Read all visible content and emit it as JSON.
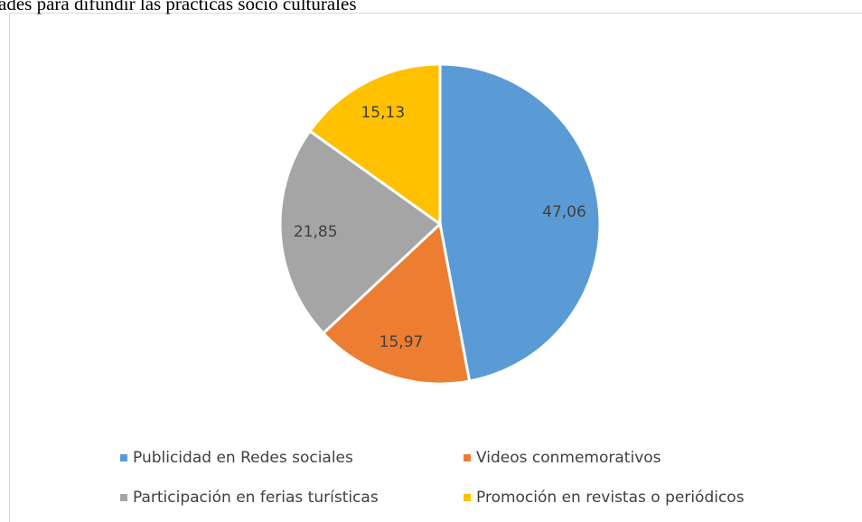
{
  "chart_data": {
    "type": "pie",
    "title": "ades para difundir las prácticas socio culturales",
    "categories": [
      "Publicidad en Redes sociales",
      "Videos conmemorativos",
      "Participación en ferias turísticas",
      "Promoción en revistas o periódicos"
    ],
    "values": [
      47.06,
      15.97,
      21.85,
      15.13
    ],
    "value_labels": [
      "47,06",
      "15,97",
      "21,85",
      "15,13"
    ],
    "colors": [
      "#5b9bd5",
      "#ed7d31",
      "#a5a5a5",
      "#ffc000"
    ],
    "legend": "bottom"
  }
}
